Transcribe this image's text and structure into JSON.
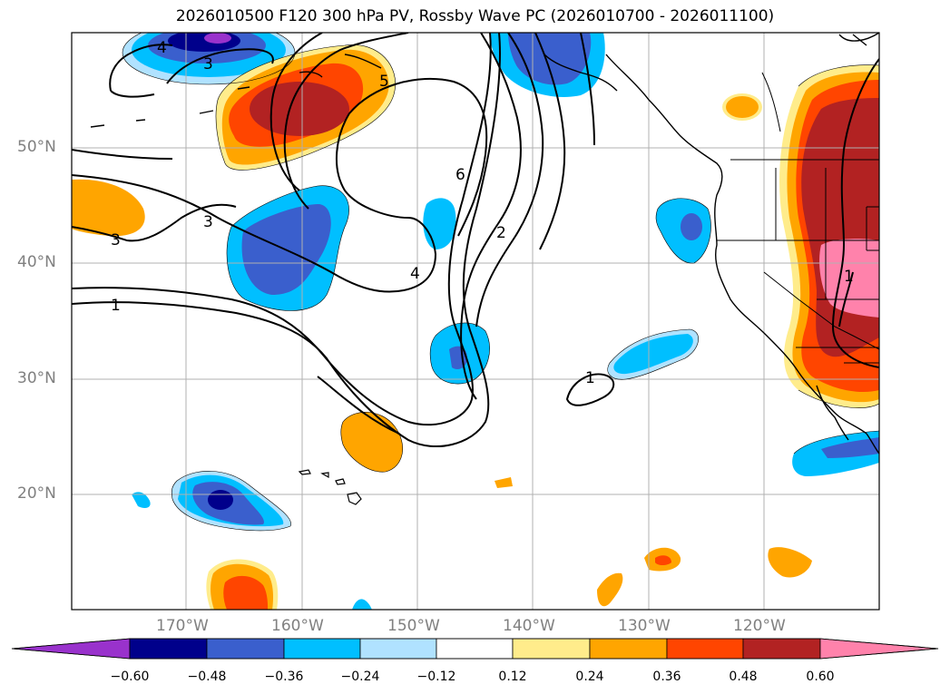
{
  "title": "2026010500 F120 300 hPa PV, Rossby Wave PC (2026010700 - 2026011100)",
  "lat_labels": [
    "50°N",
    "40°N",
    "30°N",
    "20°N"
  ],
  "lon_labels": [
    "170°W",
    "160°W",
    "150°W",
    "140°W",
    "130°W",
    "120°W"
  ],
  "colorbar": {
    "ticks": [
      "−0.60",
      "−0.48",
      "−0.36",
      "−0.24",
      "−0.12",
      "0.12",
      "0.24",
      "0.36",
      "0.48",
      "0.60"
    ],
    "colors": [
      "#9932cc",
      "#00008b",
      "#3a5fcd",
      "#00bfff",
      "#b0e2ff",
      "#ffffff",
      "#ffec8b",
      "#ffa500",
      "#ff4500",
      "#b22222",
      "#ff82ab"
    ]
  },
  "contour_labels": [
    "4",
    "3",
    "5",
    "6",
    "3",
    "3",
    "1",
    "4",
    "2",
    "1",
    "1"
  ]
}
